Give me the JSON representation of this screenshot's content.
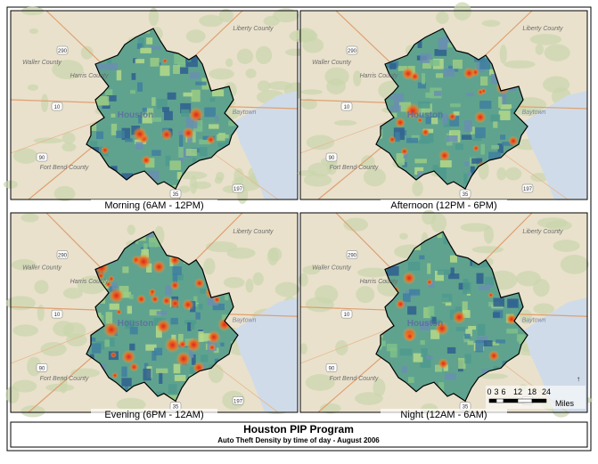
{
  "panels": [
    {
      "caption": "Morning (6AM - 12PM)"
    },
    {
      "caption": "Afternoon (12PM - 6PM)"
    },
    {
      "caption": "Evening (6PM - 12AM)"
    },
    {
      "caption": "Night (12AM - 6AM)"
    }
  ],
  "map_labels": {
    "liberty": "Liberty County",
    "waller": "Waller County",
    "harris": "Harris County",
    "houston": "Houston",
    "fort_bend": "Fort Bend County",
    "baytown": "Baytown",
    "highways": [
      "290",
      "10",
      "90",
      "35",
      "197"
    ]
  },
  "scale_bar": {
    "ticks": [
      "0",
      "3",
      "6",
      "12",
      "18",
      "24"
    ],
    "unit": "Miles"
  },
  "title": "Houston PIP Program",
  "subtitle": "Auto Theft Density by time of day - August 2006"
}
